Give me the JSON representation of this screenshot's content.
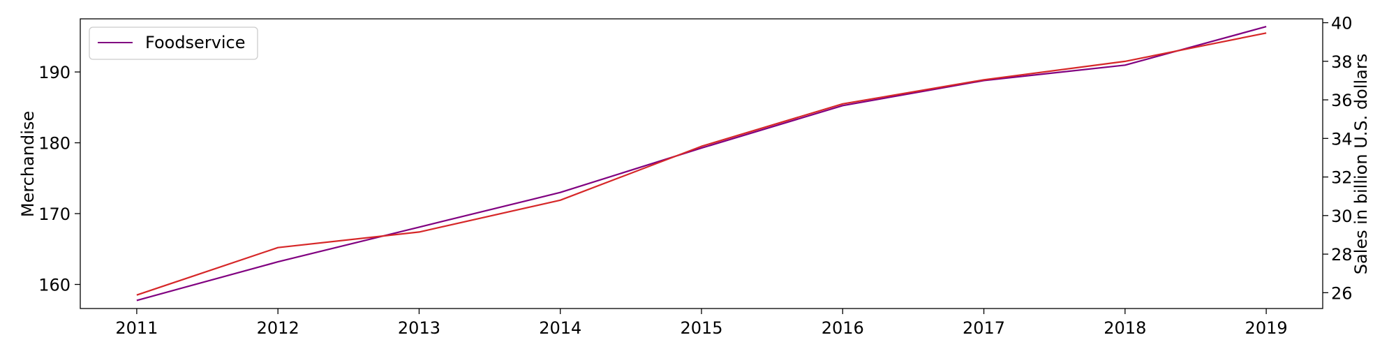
{
  "chart_data": {
    "type": "line",
    "x": [
      2011,
      2012,
      2013,
      2014,
      2015,
      2016,
      2017,
      2018,
      2019
    ],
    "series": [
      {
        "name": "Foodservice",
        "axis": "right",
        "color": "#800080",
        "values": [
          25.6,
          27.6,
          29.4,
          31.2,
          33.5,
          35.7,
          37.0,
          37.8,
          39.8
        ]
      },
      {
        "axis": "left",
        "color": "#d62728",
        "values": [
          158.5,
          165.2,
          167.4,
          171.9,
          179.5,
          185.5,
          188.9,
          191.5,
          195.5
        ]
      }
    ],
    "ylabel": "Merchandise",
    "ylabel_right": "Sales in billion U.S. dollars",
    "ylim": [
      156.6,
      197.5
    ],
    "ylim_right": [
      25.18,
      40.2
    ],
    "xlim": [
      2010.6,
      2019.4
    ],
    "yticks": [
      160,
      170,
      180,
      190
    ],
    "yticks_right": [
      26,
      28,
      30,
      32,
      34,
      36,
      38,
      40
    ],
    "grid": false,
    "legend": "top-left"
  }
}
